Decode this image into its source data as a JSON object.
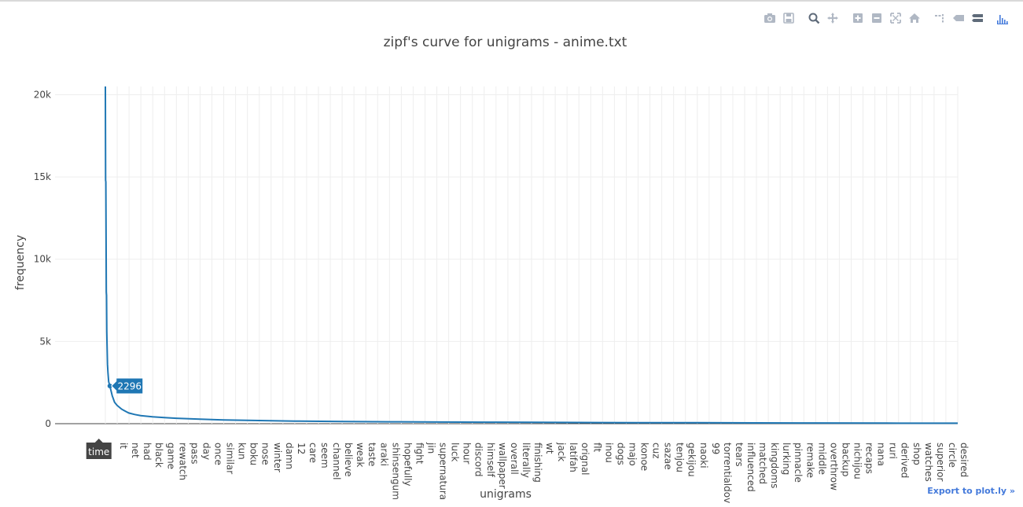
{
  "modebar": {
    "buttons": [
      {
        "name": "camera-icon",
        "title": "Download plot as a png"
      },
      {
        "name": "save-icon",
        "title": "Save and edit plot in cloud"
      },
      {
        "name": "zoom-icon",
        "title": "Zoom"
      },
      {
        "name": "pan-icon",
        "title": "Pan"
      },
      {
        "name": "zoom-in-icon",
        "title": "Zoom in"
      },
      {
        "name": "zoom-out-icon",
        "title": "Zoom out"
      },
      {
        "name": "autoscale-icon",
        "title": "Autoscale"
      },
      {
        "name": "home-icon",
        "title": "Reset axes"
      },
      {
        "name": "spike-lines-icon",
        "title": "Toggle Spike Lines"
      },
      {
        "name": "hover-closest-icon",
        "title": "Show closest data on hover"
      },
      {
        "name": "hover-compare-icon",
        "title": "Compare data on hover"
      },
      {
        "name": "plotly-logo-icon",
        "title": "Produced with Plotly"
      }
    ]
  },
  "export_link": "Export to plot.ly »",
  "colors": {
    "line": "#1f77b4",
    "grid": "#eeeeee",
    "text": "#444444",
    "hover_bg": "#1f77b4",
    "spike_bg": "#444444"
  },
  "chart_data": {
    "type": "line",
    "title": "zipf's curve for unigrams - anime.txt",
    "xlabel": "unigrams",
    "ylabel": "frequency",
    "ylim": [
      0,
      20500
    ],
    "yticks": [
      0,
      5000,
      10000,
      15000,
      20000
    ],
    "ytick_labels": [
      "0",
      "5k",
      "10k",
      "15k",
      "20k"
    ],
    "grid": true,
    "n_points": 3600,
    "tick_labels": [
      ".",
      "it",
      "net",
      "had",
      "black",
      "game",
      "rewatch",
      "pass",
      "day",
      "once",
      "similar",
      "kun",
      "boku",
      "nose",
      "winter",
      "damn",
      "12",
      "care",
      "seem",
      "channel",
      "believe",
      "weak",
      "taste",
      "araki",
      "shinsengumi",
      "hopefully",
      "fight",
      "jin",
      "supernatural",
      "luck",
      "hour",
      "discord",
      "himself",
      "wallpaper",
      "overall",
      "literally",
      "finishing",
      "wt",
      "jack",
      "latifah",
      "original",
      "flt",
      "inou",
      "dogs",
      "majo",
      "konoe",
      "cuz",
      "sazae",
      "tenjou",
      "gekijou",
      "naoki",
      "99",
      "torrentialdownpour",
      "tears",
      "influenced",
      "matched",
      "kingdoms",
      "lurking",
      "pinnacle",
      "remake",
      "middle",
      "overthrow",
      "backup",
      "nichijou",
      "recaps",
      "nana",
      "ruri",
      "derived",
      "shop",
      "watches",
      "superior",
      "circle",
      "desired"
    ],
    "visible_tick_labels": [
      ".",
      "it",
      "net",
      "had",
      "black",
      "game",
      "rewatch",
      "pass",
      "day",
      "once",
      "similar",
      "kun",
      "boku",
      "nose",
      "winter",
      "damn",
      "12",
      "care",
      "seem",
      "channel",
      "believe",
      "weak",
      "taste",
      "araki",
      "shinsengum",
      "hopefully",
      "fight",
      "jin",
      "supernatura",
      "luck",
      "hour",
      "discord",
      "himself",
      "wallpaper",
      "overall",
      "literally",
      "finishing",
      "wt",
      "jack",
      "latifah",
      "orignal",
      "flt",
      "inou",
      "dogs",
      "majo",
      "konoe",
      "cuz",
      "sazae",
      "tenjou",
      "gekijou",
      "naoki",
      "99",
      "torrentialdov",
      "tears",
      "influenced",
      "matched",
      "kingdoms",
      "lurking",
      "pinnacle",
      "remake",
      "middle",
      "overthrow",
      "backup",
      "nichijou",
      "recaps",
      "nana",
      "ruri",
      "derived",
      "shop",
      "watches",
      "superior",
      "circle",
      "desired"
    ],
    "series": [
      {
        "x_rank": [
          1,
          2,
          3,
          4,
          5,
          6,
          7,
          8,
          10,
          12,
          15,
          20,
          25,
          30,
          35,
          40,
          50,
          60,
          70,
          80,
          90,
          100,
          125,
          150,
          200,
          250,
          300,
          400,
          500,
          600,
          700,
          800,
          1000,
          1200,
          1400,
          1600,
          1800,
          2000,
          2250,
          2500,
          2750,
          3000,
          3300,
          3600
        ],
        "values": [
          20500,
          14800,
          14700,
          11400,
          8000,
          7800,
          5600,
          4900,
          3600,
          3100,
          2550,
          2296,
          2000,
          1700,
          1500,
          1300,
          1120,
          1000,
          880,
          800,
          720,
          650,
          560,
          490,
          420,
          370,
          330,
          270,
          230,
          200,
          175,
          160,
          135,
          115,
          100,
          90,
          80,
          72,
          62,
          55,
          48,
          42,
          35,
          30
        ]
      }
    ],
    "hover": {
      "category": "time",
      "value": "2296"
    }
  }
}
